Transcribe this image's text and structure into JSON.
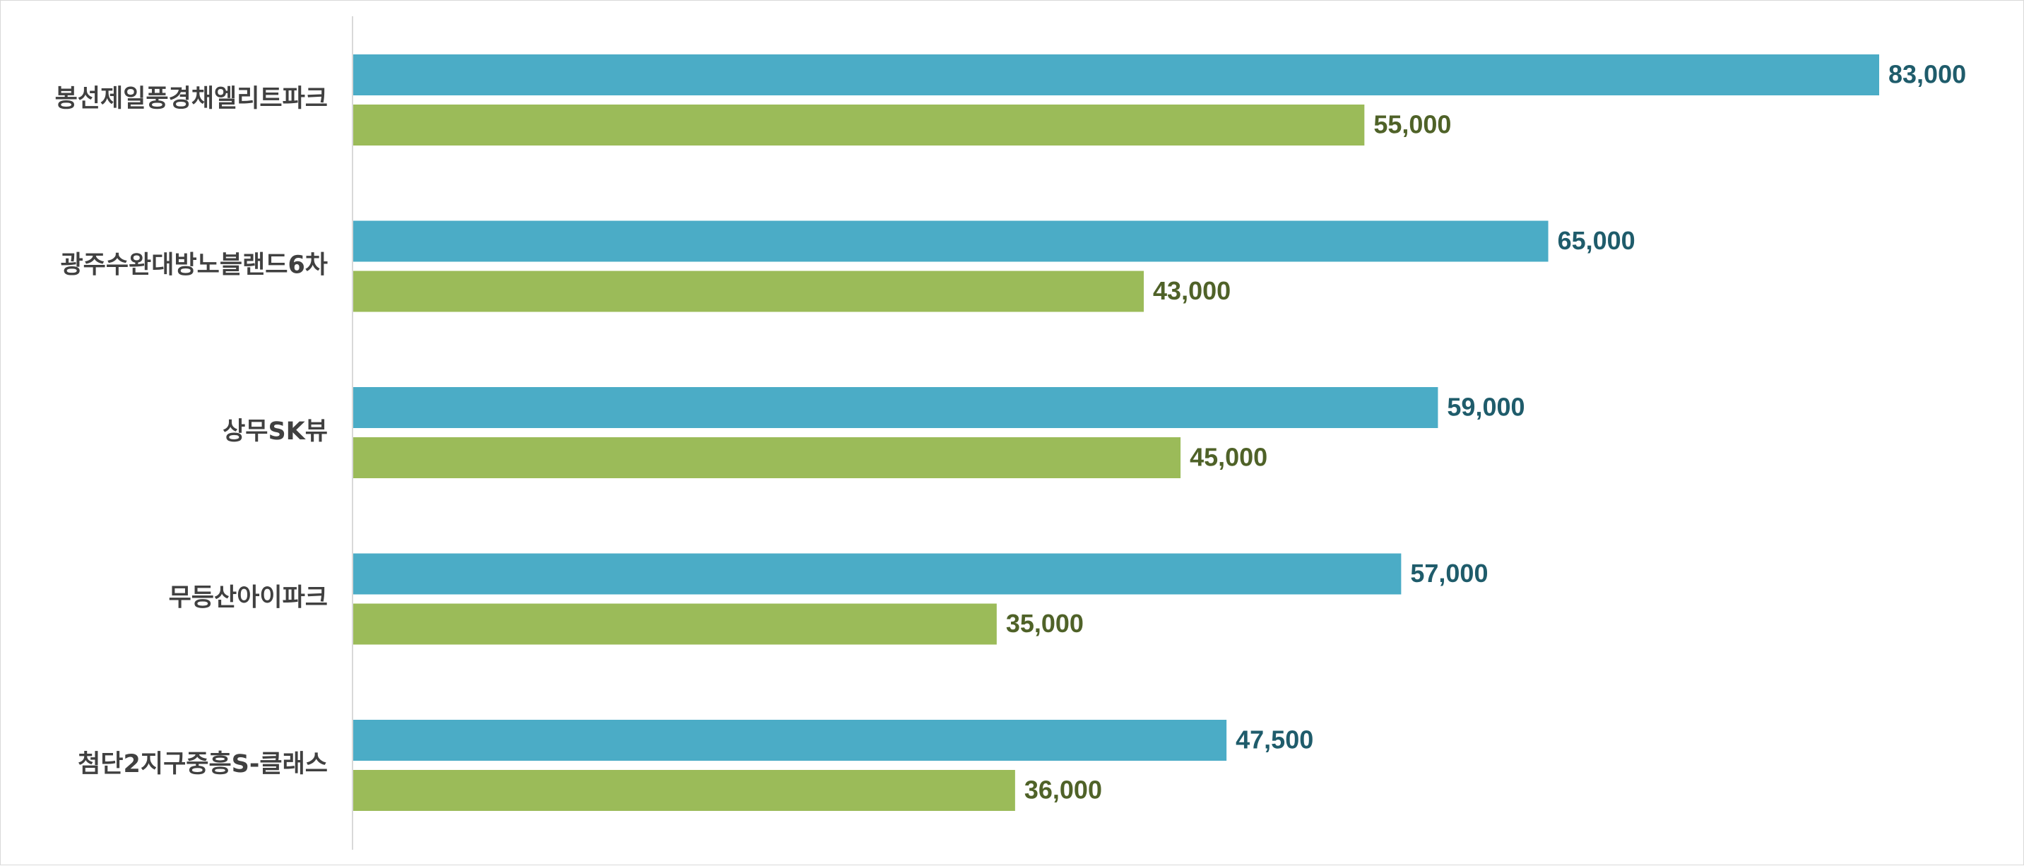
{
  "chart_data": {
    "type": "bar",
    "orientation": "horizontal",
    "categories": [
      "봉선제일풍경채엘리트파크",
      "광주수완대방노블랜드6차",
      "상무SK뷰",
      "무등산아이파크",
      "첨단2지구중흥S-클래스"
    ],
    "series": [
      {
        "color": "#4bacc6",
        "label_color": "#1f5c6b",
        "values": [
          83000,
          65000,
          59000,
          57000,
          47500
        ]
      },
      {
        "color": "#9bbb59",
        "label_color": "#4f6228",
        "values": [
          55000,
          43000,
          45000,
          35000,
          36000
        ]
      }
    ],
    "value_labels": [
      [
        "83,000",
        "65,000",
        "59,000",
        "57,000",
        "47,500"
      ],
      [
        "55,000",
        "43,000",
        "45,000",
        "35,000",
        "36,000"
      ]
    ],
    "xlim": [
      0,
      83000
    ],
    "grid": false,
    "legend": "none",
    "axis_line_color": "#d9d9d9"
  }
}
